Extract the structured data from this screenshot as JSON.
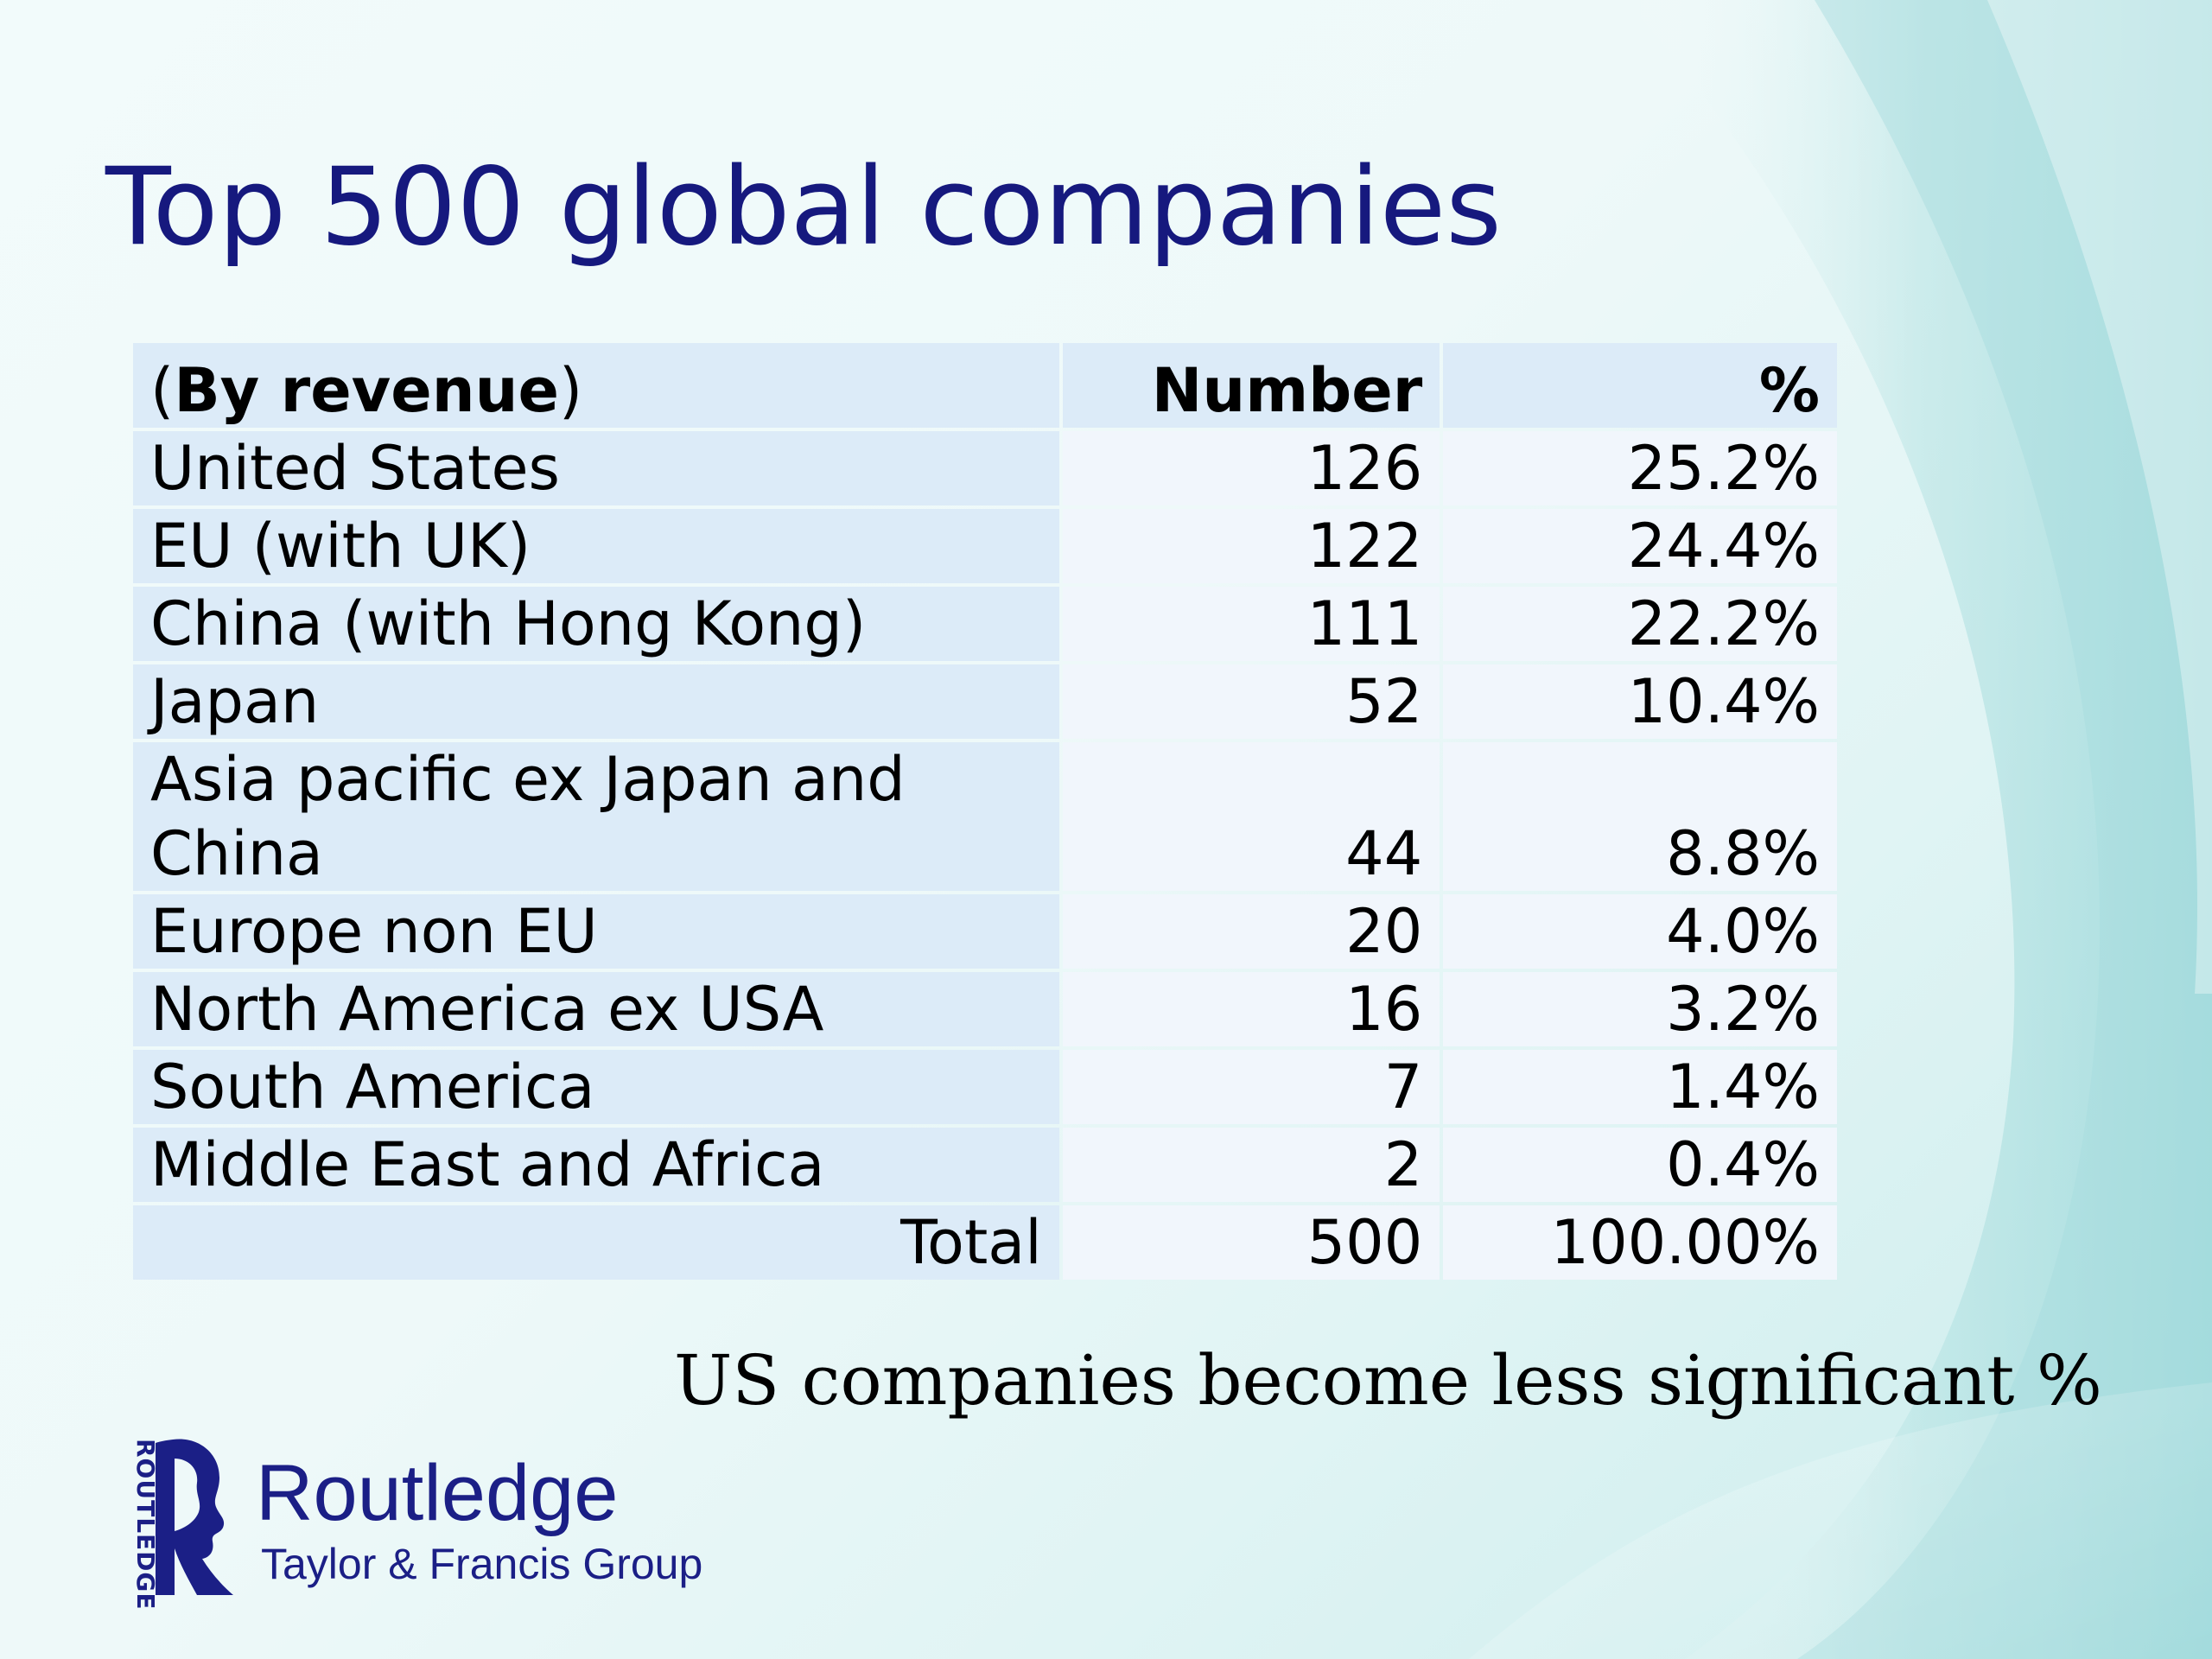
{
  "title": "Top 500 global companies",
  "table": {
    "header": {
      "label_open": "(",
      "label_bold": "By revenue",
      "label_close": ")",
      "number": "Number",
      "percent": "%"
    },
    "rows": [
      {
        "label": "United States",
        "number": "126",
        "percent": "25.2%"
      },
      {
        "label": "EU (with UK)",
        "number": "122",
        "percent": "24.4%"
      },
      {
        "label": "China (with Hong Kong)",
        "number": "111",
        "percent": "22.2%"
      },
      {
        "label": "Japan",
        "number": "52",
        "percent": "10.4%"
      },
      {
        "label": "Asia pacific ex Japan and China",
        "number": "44",
        "percent": "8.8%"
      },
      {
        "label": "Europe non EU",
        "number": "20",
        "percent": "4.0%"
      },
      {
        "label": "North America ex USA",
        "number": "16",
        "percent": "3.2%"
      },
      {
        "label": "South America",
        "number": "7",
        "percent": "1.4%"
      },
      {
        "label": "Middle East and Africa",
        "number": "2",
        "percent": "0.4%"
      }
    ],
    "total": {
      "label": "Total",
      "number": "500",
      "percent": "100.00%"
    }
  },
  "caption": "US companies become less significant %",
  "logo": {
    "vertical_text": "ROUTLEDGE",
    "name": "Routledge",
    "subtitle": "Taylor & Francis Group",
    "color": "#1b1f86"
  },
  "colors": {
    "title": "#16197e",
    "label_cell": "#dcebf8",
    "value_cell": "#f1f6fc"
  }
}
